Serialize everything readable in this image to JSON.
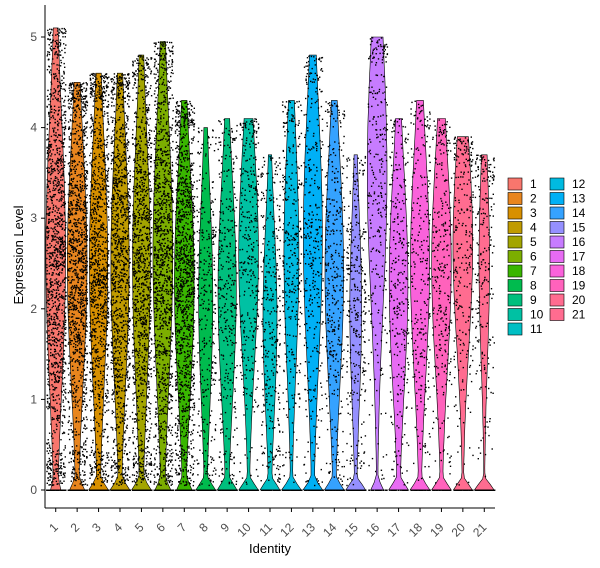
{
  "chart_data": {
    "type": "violin",
    "xlabel": "Identity",
    "ylabel": "Expression Level",
    "ylim": [
      0,
      5
    ],
    "yticks": [
      "0",
      "1",
      "2",
      "3",
      "4",
      "5"
    ],
    "categories": [
      "1",
      "2",
      "3",
      "4",
      "5",
      "6",
      "7",
      "8",
      "9",
      "10",
      "11",
      "12",
      "13",
      "14",
      "15",
      "16",
      "17",
      "18",
      "19",
      "20",
      "21"
    ],
    "colors": [
      "#F8766D",
      "#E8851E",
      "#D89000",
      "#C09B00",
      "#A3A500",
      "#7CAE00",
      "#39B600",
      "#00BB4E",
      "#00BF7D",
      "#00C1A3",
      "#00BFC4",
      "#00BAE0",
      "#00B0F6",
      "#35A2FF",
      "#9590FF",
      "#C77CFF",
      "#E76BF3",
      "#FA62DB",
      "#FF62BC",
      "#FF6C90",
      "#FF6C90"
    ],
    "series": [
      {
        "name": "1",
        "max": 5.1,
        "median": 2.6,
        "zero_fraction": 0.05
      },
      {
        "name": "2",
        "max": 4.5,
        "median": 2.5,
        "zero_fraction": 0.1
      },
      {
        "name": "3",
        "max": 4.6,
        "median": 2.5,
        "zero_fraction": 0.15
      },
      {
        "name": "4",
        "max": 4.6,
        "median": 2.5,
        "zero_fraction": 0.15
      },
      {
        "name": "5",
        "max": 4.8,
        "median": 2.5,
        "zero_fraction": 0.15
      },
      {
        "name": "6",
        "max": 4.95,
        "median": 2.6,
        "zero_fraction": 0.1
      },
      {
        "name": "7",
        "max": 4.3,
        "median": 2.3,
        "zero_fraction": 0.1
      },
      {
        "name": "8",
        "max": 4.0,
        "median": 2.1,
        "zero_fraction": 0.2
      },
      {
        "name": "9",
        "max": 4.1,
        "median": 2.2,
        "zero_fraction": 0.15
      },
      {
        "name": "10",
        "max": 4.1,
        "median": 2.6,
        "zero_fraction": 0.15
      },
      {
        "name": "11",
        "max": 3.7,
        "median": 1.9,
        "zero_fraction": 0.2
      },
      {
        "name": "12",
        "max": 4.3,
        "median": 2.6,
        "zero_fraction": 0.2
      },
      {
        "name": "13",
        "max": 4.8,
        "median": 2.8,
        "zero_fraction": 0.15
      },
      {
        "name": "14",
        "max": 4.3,
        "median": 2.4,
        "zero_fraction": 0.15
      },
      {
        "name": "15",
        "max": 3.7,
        "median": 2.0,
        "zero_fraction": 0.25
      },
      {
        "name": "16",
        "max": 5.0,
        "median": 3.5,
        "zero_fraction": 0.1
      },
      {
        "name": "17",
        "max": 4.1,
        "median": 2.3,
        "zero_fraction": 0.15
      },
      {
        "name": "18",
        "max": 4.3,
        "median": 2.5,
        "zero_fraction": 0.15
      },
      {
        "name": "19",
        "max": 4.1,
        "median": 2.5,
        "zero_fraction": 0.15
      },
      {
        "name": "20",
        "max": 3.9,
        "median": 2.7,
        "zero_fraction": 0.15
      },
      {
        "name": "21",
        "max": 3.7,
        "median": 2.5,
        "zero_fraction": 0.3
      }
    ],
    "legend": {
      "placement": "right",
      "columns": [
        [
          "1",
          "2",
          "3",
          "4",
          "5",
          "6",
          "7",
          "8",
          "9",
          "10",
          "11"
        ],
        [
          "12",
          "13",
          "14",
          "15",
          "16",
          "17",
          "18",
          "19",
          "20",
          "21"
        ]
      ]
    }
  }
}
